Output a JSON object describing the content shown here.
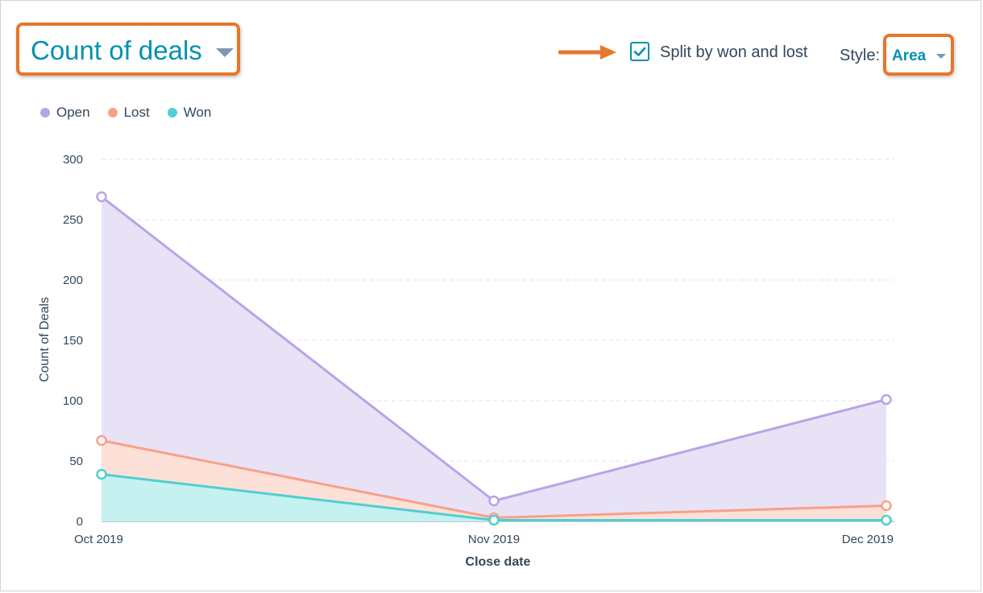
{
  "header": {
    "metric_title": "Count of deals",
    "split_label": "Split by won and lost",
    "split_checked": true,
    "style_label": "Style:",
    "style_value": "Area"
  },
  "colors": {
    "highlight": "#e8762c",
    "accent": "#0091ae",
    "open": "#b9a4e6",
    "lost": "#f8a08a",
    "won": "#4fcfd1"
  },
  "chart_data": {
    "type": "area",
    "categories": [
      "Oct 2019",
      "Nov 2019",
      "Dec 2019"
    ],
    "series": [
      {
        "name": "Open",
        "color": "#b9a4e6",
        "fill": "#e8e2f7",
        "values": [
          269,
          17,
          101
        ]
      },
      {
        "name": "Lost",
        "color": "#f8a08a",
        "fill": "#fde0d7",
        "values": [
          67,
          3,
          13
        ]
      },
      {
        "name": "Won",
        "color": "#4fcfd1",
        "fill": "#c5f1f1",
        "values": [
          39,
          1,
          1
        ]
      }
    ],
    "xlabel": "Close date",
    "ylabel": "Count of Deals",
    "ylim": [
      0,
      300
    ],
    "yticks": [
      0,
      50,
      100,
      150,
      200,
      250,
      300
    ],
    "legend_position": "top-left",
    "grid": true
  }
}
